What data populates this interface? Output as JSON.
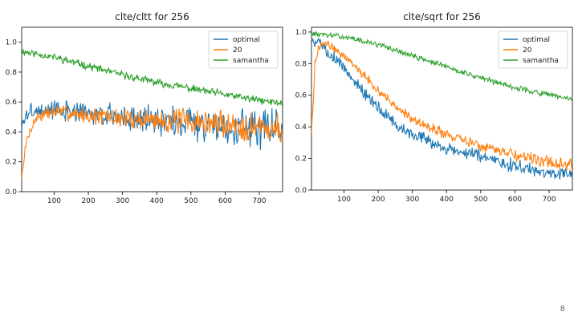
{
  "slide": {
    "page_number": "8"
  },
  "chart_data": [
    {
      "type": "line",
      "title": "clte/cltt for 256",
      "xlabel": "",
      "ylabel": "",
      "xlim": [
        5,
        768
      ],
      "ylim": [
        0.0,
        1.1
      ],
      "x_ticks": [
        100,
        200,
        300,
        400,
        500,
        600,
        700
      ],
      "y_ticks": [
        0.0,
        0.2,
        0.4,
        0.6,
        0.8,
        1.0
      ],
      "x_tick_labels": [
        "100",
        "200",
        "300",
        "400",
        "500",
        "600",
        "700"
      ],
      "y_tick_labels": [
        "0.0",
        "0.2",
        "0.4",
        "0.6",
        "0.8",
        "1.0"
      ],
      "legend": "top-right",
      "series": [
        {
          "name": "optimal",
          "color": "#1f77b4",
          "kind": "plateau_noisy",
          "x": [
            5,
            15,
            30,
            100,
            200,
            300,
            400,
            500,
            600,
            700,
            768
          ],
          "y": [
            0.42,
            0.5,
            0.54,
            0.55,
            0.52,
            0.5,
            0.48,
            0.46,
            0.44,
            0.43,
            0.42
          ],
          "noise_start": 0.04,
          "noise_end": 0.11,
          "seed": 3
        },
        {
          "name": "20",
          "color": "#ff7f0e",
          "kind": "rise_noisy",
          "x": [
            5,
            10,
            20,
            35,
            50,
            100,
            200,
            300,
            400,
            500,
            600,
            700,
            768
          ],
          "y": [
            0.08,
            0.2,
            0.34,
            0.44,
            0.5,
            0.54,
            0.51,
            0.49,
            0.48,
            0.47,
            0.45,
            0.43,
            0.41
          ],
          "noise_start": 0.03,
          "noise_end": 0.09,
          "seed": 7
        },
        {
          "name": "samantha",
          "color": "#2ca02c",
          "kind": "decay_noisy",
          "x": [
            5,
            100,
            200,
            300,
            400,
            500,
            600,
            700,
            768
          ],
          "y": [
            0.94,
            0.9,
            0.84,
            0.78,
            0.73,
            0.69,
            0.65,
            0.61,
            0.59
          ],
          "noise_start": 0.02,
          "noise_end": 0.02,
          "seed": 11
        }
      ]
    },
    {
      "type": "line",
      "title": "clte/sqrt for 256",
      "xlabel": "",
      "ylabel": "",
      "xlim": [
        5,
        768
      ],
      "ylim": [
        0.0,
        1.03
      ],
      "x_ticks": [
        100,
        200,
        300,
        400,
        500,
        600,
        700
      ],
      "y_ticks": [
        0.0,
        0.2,
        0.4,
        0.6,
        0.8,
        1.0
      ],
      "x_tick_labels": [
        "100",
        "200",
        "300",
        "400",
        "500",
        "600",
        "700"
      ],
      "y_tick_labels": [
        "0.0",
        "0.2",
        "0.4",
        "0.6",
        "0.8",
        "1.0"
      ],
      "legend": "top-right",
      "series": [
        {
          "name": "optimal",
          "color": "#1f77b4",
          "kind": "decay_noisy",
          "x": [
            5,
            30,
            60,
            100,
            150,
            200,
            250,
            300,
            400,
            500,
            600,
            700,
            768
          ],
          "y": [
            0.95,
            0.93,
            0.86,
            0.78,
            0.64,
            0.52,
            0.42,
            0.35,
            0.26,
            0.21,
            0.15,
            0.11,
            0.11
          ],
          "noise_start": 0.03,
          "noise_end": 0.035,
          "seed": 5
        },
        {
          "name": "20",
          "color": "#ff7f0e",
          "kind": "rise_noisy",
          "x": [
            5,
            10,
            15,
            25,
            40,
            60,
            100,
            150,
            200,
            250,
            300,
            400,
            500,
            600,
            700,
            768
          ],
          "y": [
            0.38,
            0.55,
            0.8,
            0.9,
            0.93,
            0.91,
            0.85,
            0.75,
            0.63,
            0.53,
            0.45,
            0.35,
            0.28,
            0.22,
            0.17,
            0.16
          ],
          "noise_start": 0.02,
          "noise_end": 0.035,
          "seed": 9
        },
        {
          "name": "samantha",
          "color": "#2ca02c",
          "kind": "decay_noisy",
          "x": [
            5,
            100,
            200,
            300,
            400,
            500,
            600,
            700,
            768
          ],
          "y": [
            0.99,
            0.97,
            0.92,
            0.85,
            0.78,
            0.71,
            0.65,
            0.6,
            0.57
          ],
          "noise_start": 0.012,
          "noise_end": 0.015,
          "seed": 13
        }
      ]
    }
  ]
}
